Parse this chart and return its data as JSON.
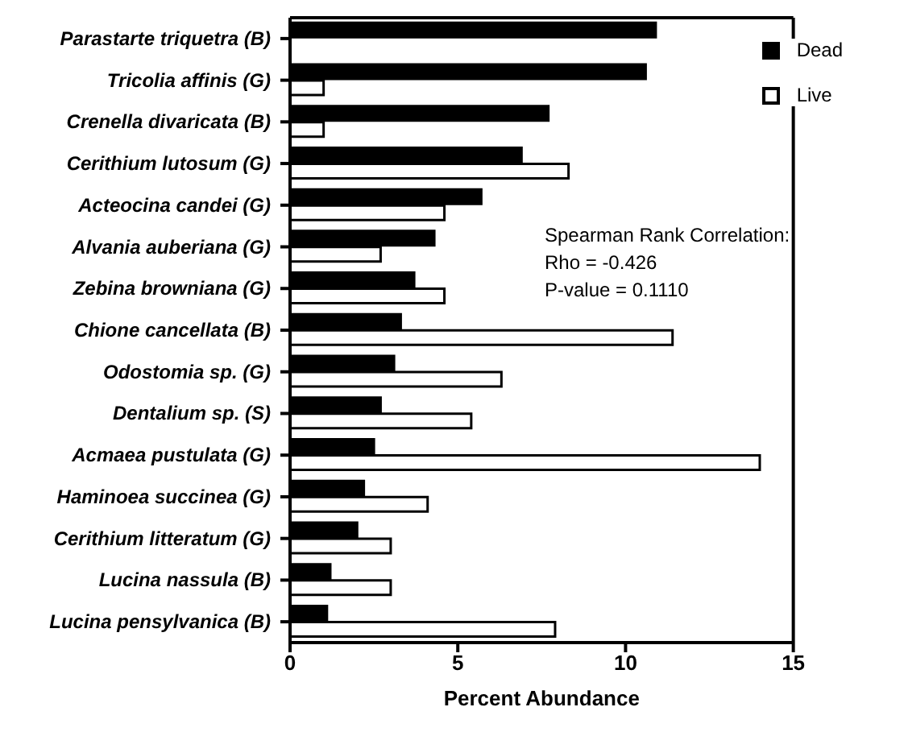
{
  "chart_data": {
    "type": "bar",
    "orientation": "horizontal",
    "xlabel": "Percent Abundance",
    "categories": [
      "Parastarte triquetra (B)",
      "Tricolia affinis (G)",
      "Crenella divaricata (B)",
      "Cerithium lutosum (G)",
      "Acteocina candei (G)",
      "Alvania auberiana (G)",
      "Zebina browniana (G)",
      "Chione cancellata (B)",
      "Odostomia sp. (G)",
      "Dentalium sp. (S)",
      "Acmaea pustulata (G)",
      "Haminoea succinea (G)",
      "Cerithium litteratum (G)",
      "Lucina nassula (B)",
      "Lucina pensylvanica (B)"
    ],
    "series": [
      {
        "name": "Dead",
        "color": "#000000",
        "values": [
          10.9,
          10.6,
          7.7,
          6.9,
          5.7,
          4.3,
          3.7,
          3.3,
          3.1,
          2.7,
          2.5,
          2.2,
          2.0,
          1.2,
          1.1
        ]
      },
      {
        "name": "Live",
        "color": "#ffffff",
        "values": [
          null,
          1.0,
          1.0,
          8.3,
          4.6,
          2.7,
          4.6,
          11.4,
          6.3,
          5.4,
          14.0,
          4.1,
          3.0,
          3.0,
          7.9
        ]
      }
    ],
    "xlim": [
      0,
      15
    ],
    "xticks": [
      0,
      5,
      10,
      15
    ],
    "grid": false,
    "legend": "top right",
    "annotations": [
      "Spearman Rank Correlation:",
      "Rho = -0.426",
      "P-value = 0.1110"
    ]
  }
}
